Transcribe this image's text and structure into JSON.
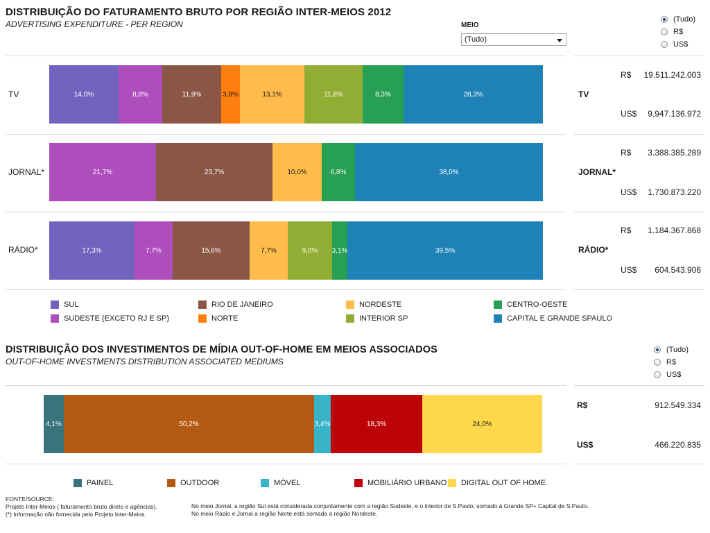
{
  "section1": {
    "title": "DISTRIBUIÇÃO DO FATURAMENTO BRUTO POR REGIÃO INTER-MEIOS 2012",
    "subtitle": "ADVERTISING EXPENDITURE - PER REGION",
    "filter": {
      "label": "MEIO",
      "value": "(Tudo)"
    },
    "currency_options": [
      {
        "label": "(Tudo)",
        "selected": true
      },
      {
        "label": "R$",
        "selected": false
      },
      {
        "label": "US$",
        "selected": false
      }
    ],
    "totals": [
      {
        "label": "TV",
        "brl_label": "R$",
        "brl": "19.511.242.003",
        "usd_label": "US$",
        "usd": "9.947.136.972"
      },
      {
        "label": "JORNAL*",
        "brl_label": "R$",
        "brl": "3.388.385.289",
        "usd_label": "US$",
        "usd": "1.730.873.220"
      },
      {
        "label": "RÁDIO*",
        "brl_label": "R$",
        "brl": "1.184.367.868",
        "usd_label": "US$",
        "usd": "604.543.906"
      }
    ],
    "legend": [
      {
        "label": "SUL",
        "color": "#7163be"
      },
      {
        "label": "SUDESTE (EXCETO RJ E SP)",
        "color": "#ae4dbc"
      },
      {
        "label": "RIO DE JANEIRO",
        "color": "#8a5746"
      },
      {
        "label": "NORTE",
        "color": "#ff7f0e"
      },
      {
        "label": "NORDESTE",
        "color": "#ffbc4a"
      },
      {
        "label": "INTERIOR SP",
        "color": "#92ad33"
      },
      {
        "label": "CENTRO-OESTE",
        "color": "#27a053"
      },
      {
        "label": "CAPITAL E  GRANDE SPAULO",
        "color": "#1f82b6"
      }
    ]
  },
  "section2": {
    "title": "DISTRIBUIÇÃO DOS INVESTIMENTOS DE MÍDIA OUT-OF-HOME EM MEIOS ASSOCIADOS",
    "subtitle": "OUT-OF-HOME INVESTMENTS DISTRIBUTION ASSOCIATED MEDIUMS",
    "currency_options": [
      {
        "label": "(Tudo)",
        "selected": true
      },
      {
        "label": "R$",
        "selected": false
      },
      {
        "label": "US$",
        "selected": false
      }
    ],
    "totals": {
      "brl_label": "R$",
      "brl": "912.549.334",
      "usd_label": "US$",
      "usd": "466.220.835"
    },
    "legend": [
      {
        "label": "PAINEL",
        "color": "#39737c"
      },
      {
        "label": "OUTDOOR",
        "color": "#b55a12"
      },
      {
        "label": "MÓVEL",
        "color": "#38b3c8"
      },
      {
        "label": "MOBILIÁRIO URBANO",
        "color": "#bd0308"
      },
      {
        "label": "DIGITAL OUT OF HOME",
        "color": "#fdd84b"
      }
    ]
  },
  "notes": {
    "source": [
      "FONTE/SOURCE:",
      "Projeto Inter-Meios ( faturamento bruto direto e agências).",
      "(*) Informação não fornecida pelo Projeto Inter-Meios."
    ],
    "remarks": [
      "No meio Jornal, a região Sul está considerada conjuntamente com a região Sudeste, e o interior de S.Paulo, somado à Grande SP+ Capital de S.Paulo.",
      "No meio Rádio e Jornal  a região Norte está somada a região Nordeste."
    ]
  },
  "chart_data": [
    {
      "type": "bar",
      "stacked": "percent",
      "orientation": "horizontal",
      "title": "DISTRIBUIÇÃO DO FATURAMENTO BRUTO POR REGIÃO INTER-MEIOS 2012",
      "subtitle": "ADVERTISING EXPENDITURE - PER REGION",
      "categories": [
        "TV",
        "JORNAL*",
        "RÁDIO*"
      ],
      "series": [
        {
          "name": "SUL",
          "color": "#7163be",
          "values": [
            14.0,
            null,
            17.3
          ]
        },
        {
          "name": "SUDESTE (EXCETO RJ E SP)",
          "color": "#ae4dbc",
          "values": [
            8.8,
            21.7,
            7.7
          ]
        },
        {
          "name": "RIO DE JANEIRO",
          "color": "#8a5746",
          "values": [
            11.9,
            23.7,
            15.6
          ]
        },
        {
          "name": "NORTE",
          "color": "#ff7f0e",
          "values": [
            3.8,
            null,
            null
          ]
        },
        {
          "name": "NORDESTE",
          "color": "#ffbc4a",
          "values": [
            13.1,
            10.0,
            7.7
          ]
        },
        {
          "name": "INTERIOR SP",
          "color": "#92ad33",
          "values": [
            11.8,
            null,
            9.0
          ]
        },
        {
          "name": "CENTRO-OESTE",
          "color": "#27a053",
          "values": [
            8.3,
            6.8,
            3.1
          ]
        },
        {
          "name": "CAPITAL E  GRANDE SPAULO",
          "color": "#1f82b6",
          "values": [
            28.3,
            38.0,
            39.5
          ]
        }
      ],
      "value_labels": [
        [
          "14,0%",
          "8,8%",
          "11,9%",
          "3,8%",
          "13,1%",
          "11,8%",
          "8,3%",
          "28,3%"
        ],
        [
          "",
          "21,7%",
          "23,7%",
          "",
          "10,0%",
          "",
          "6,8%",
          "38,0%"
        ],
        [
          "17,3%",
          "7,7%",
          "15,6%",
          "",
          "7,7%",
          "9,0%",
          "3,1%",
          "39,5%"
        ]
      ],
      "unit": "%",
      "legend": "bottom"
    },
    {
      "type": "bar",
      "stacked": "percent",
      "orientation": "horizontal",
      "title": "DISTRIBUIÇÃO DOS INVESTIMENTOS DE MÍDIA OUT-OF-HOME EM MEIOS ASSOCIADOS",
      "subtitle": "OUT-OF-HOME INVESTMENTS DISTRIBUTION ASSOCIATED MEDIUMS",
      "categories": [
        ""
      ],
      "series": [
        {
          "name": "PAINEL",
          "color": "#39737c",
          "values": [
            4.1
          ]
        },
        {
          "name": "OUTDOOR",
          "color": "#b55a12",
          "values": [
            50.2
          ]
        },
        {
          "name": "MÓVEL",
          "color": "#38b3c8",
          "values": [
            3.4
          ]
        },
        {
          "name": "MOBILIÁRIO URBANO",
          "color": "#bd0308",
          "values": [
            18.3
          ]
        },
        {
          "name": "DIGITAL OUT OF HOME",
          "color": "#fdd84b",
          "values": [
            24.0
          ]
        }
      ],
      "value_labels": [
        [
          "4,1%",
          "50,2%",
          "3,4%",
          "18,3%",
          "24,0%"
        ]
      ],
      "unit": "%",
      "legend": "bottom"
    }
  ]
}
